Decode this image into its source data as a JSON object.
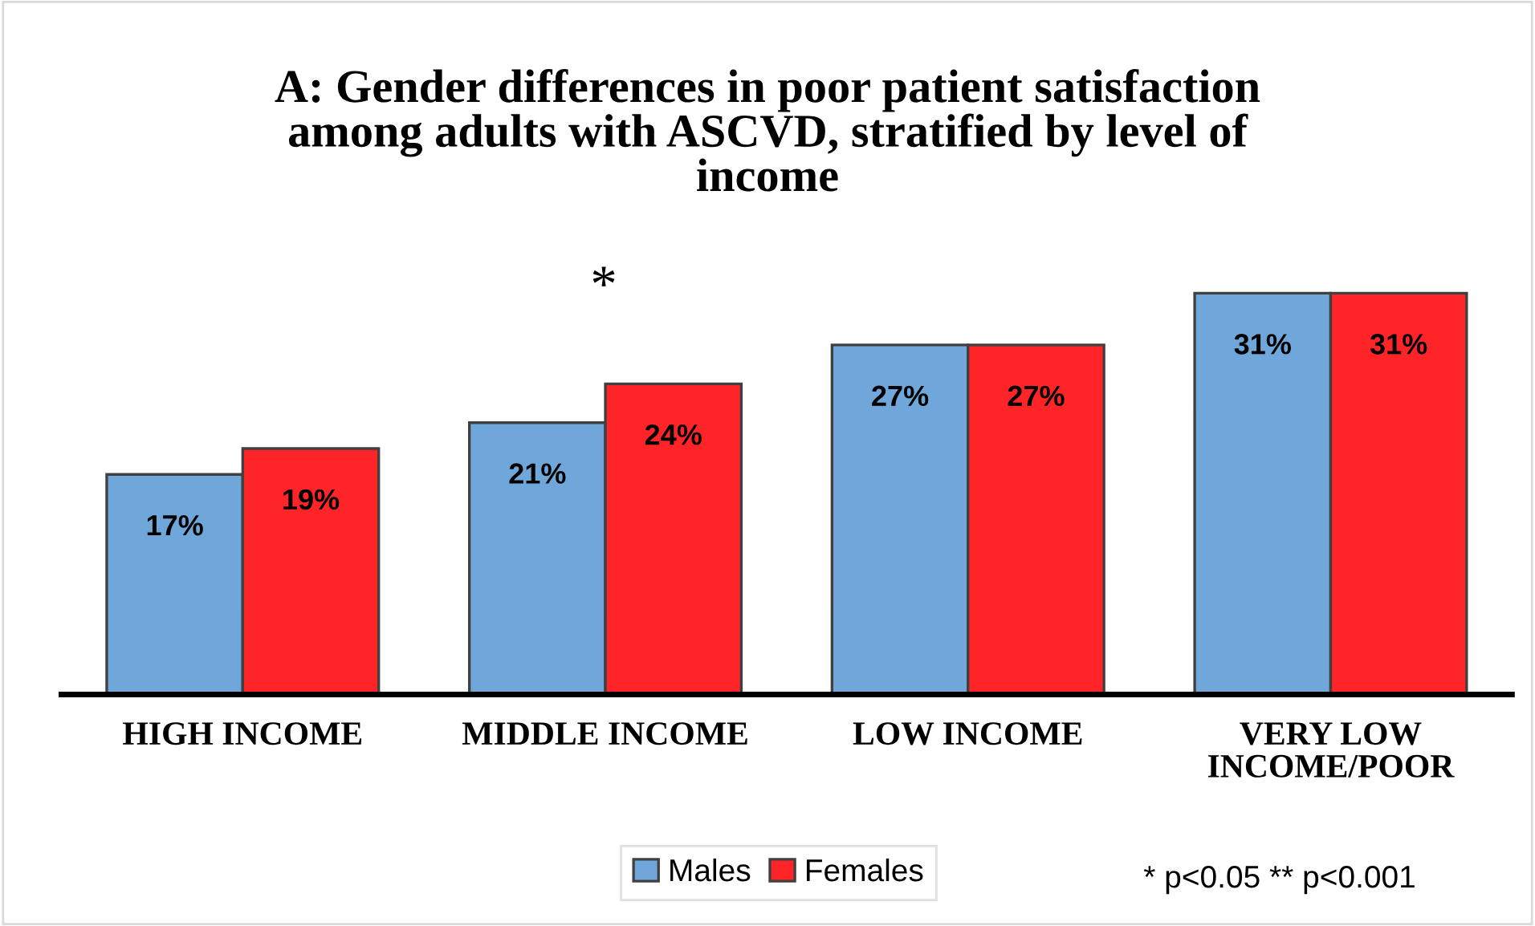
{
  "chart_data": {
    "type": "bar",
    "title": "A: Gender differences in poor patient satisfaction\namong adults with ASCVD, stratified by level of\nincome",
    "categories": [
      "HIGH INCOME",
      "MIDDLE INCOME",
      "LOW INCOME",
      "VERY LOW\nINCOME/POOR"
    ],
    "series": [
      {
        "name": "Males",
        "color": "#70a7da",
        "values": [
          17,
          21,
          27,
          31
        ],
        "value_labels": [
          "17%",
          "21%",
          "27%",
          "31%"
        ]
      },
      {
        "name": "Females",
        "color": "#fe2427",
        "values": [
          19,
          24,
          27,
          31
        ],
        "value_labels": [
          "19%",
          "24%",
          "27%",
          "31%"
        ]
      }
    ],
    "grid": false,
    "legend": "bottom",
    "annotations": [
      "*",
      "* p<0.05 ** p<0.001"
    ]
  }
}
